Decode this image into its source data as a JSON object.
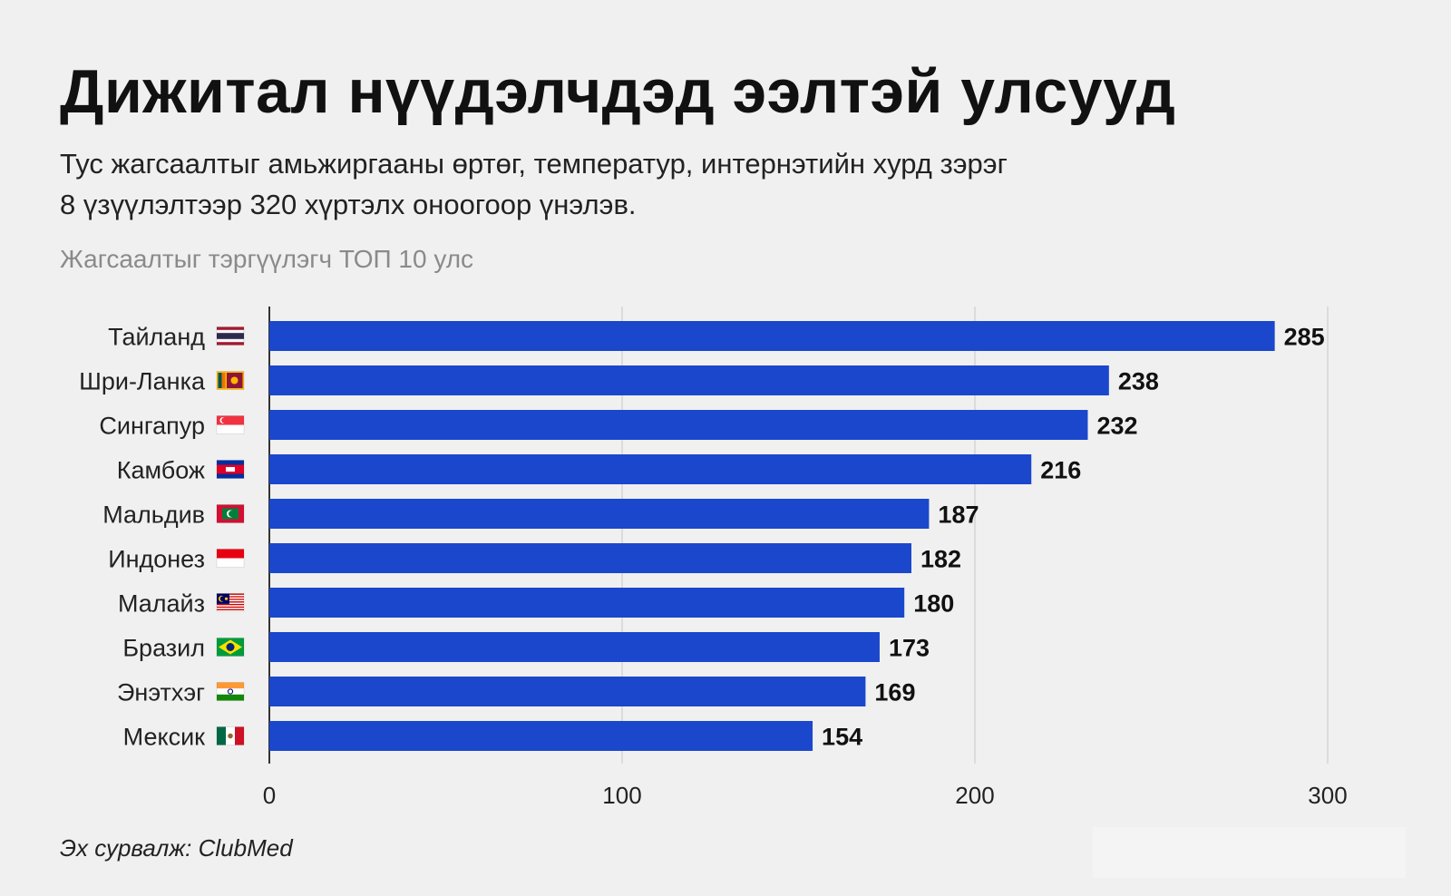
{
  "header": {
    "title": "Дижитал нүүдэлчдэд ээлтэй улсууд",
    "subtitle_lines": [
      "Тус жагсаалтыг амьжиргааны өртөг, температур, интернэтийн хурд зэрэг",
      "8 үзүүлэлтээр 320 хүртэлх оноогоор үнэлэв."
    ],
    "chart_caption": "Жагсаалтыг тэргүүлэгч ТОП 10 улс"
  },
  "footer": {
    "source": "Эх сурвалж: ClubMed"
  },
  "colors": {
    "bar": "#1a47cc",
    "grid": "#d4d4d4",
    "axis": "#333333",
    "background": "#f0f0f0"
  },
  "chart_data": {
    "type": "bar",
    "orientation": "horizontal",
    "title": "Жагсаалтыг тэргүүлэгч ТОП 10 улс",
    "categories": [
      "Тайланд",
      "Шри-Ланка",
      "Сингапур",
      "Камбож",
      "Мальдив",
      "Индонез",
      "Малайз",
      "Бразил",
      "Энэтхэг",
      "Мексик"
    ],
    "flags": [
      "flag-thailand-icon",
      "flag-sri-lanka-icon",
      "flag-singapore-icon",
      "flag-cambodia-icon",
      "flag-maldives-icon",
      "flag-indonesia-icon",
      "flag-malaysia-icon",
      "flag-brazil-icon",
      "flag-india-icon",
      "flag-mexico-icon"
    ],
    "values": [
      285,
      238,
      232,
      216,
      187,
      182,
      180,
      173,
      169,
      154
    ],
    "xlim": [
      0,
      300
    ],
    "xticks": [
      0,
      100,
      200,
      300
    ],
    "grid": true,
    "data_labels": true,
    "legend": false
  }
}
